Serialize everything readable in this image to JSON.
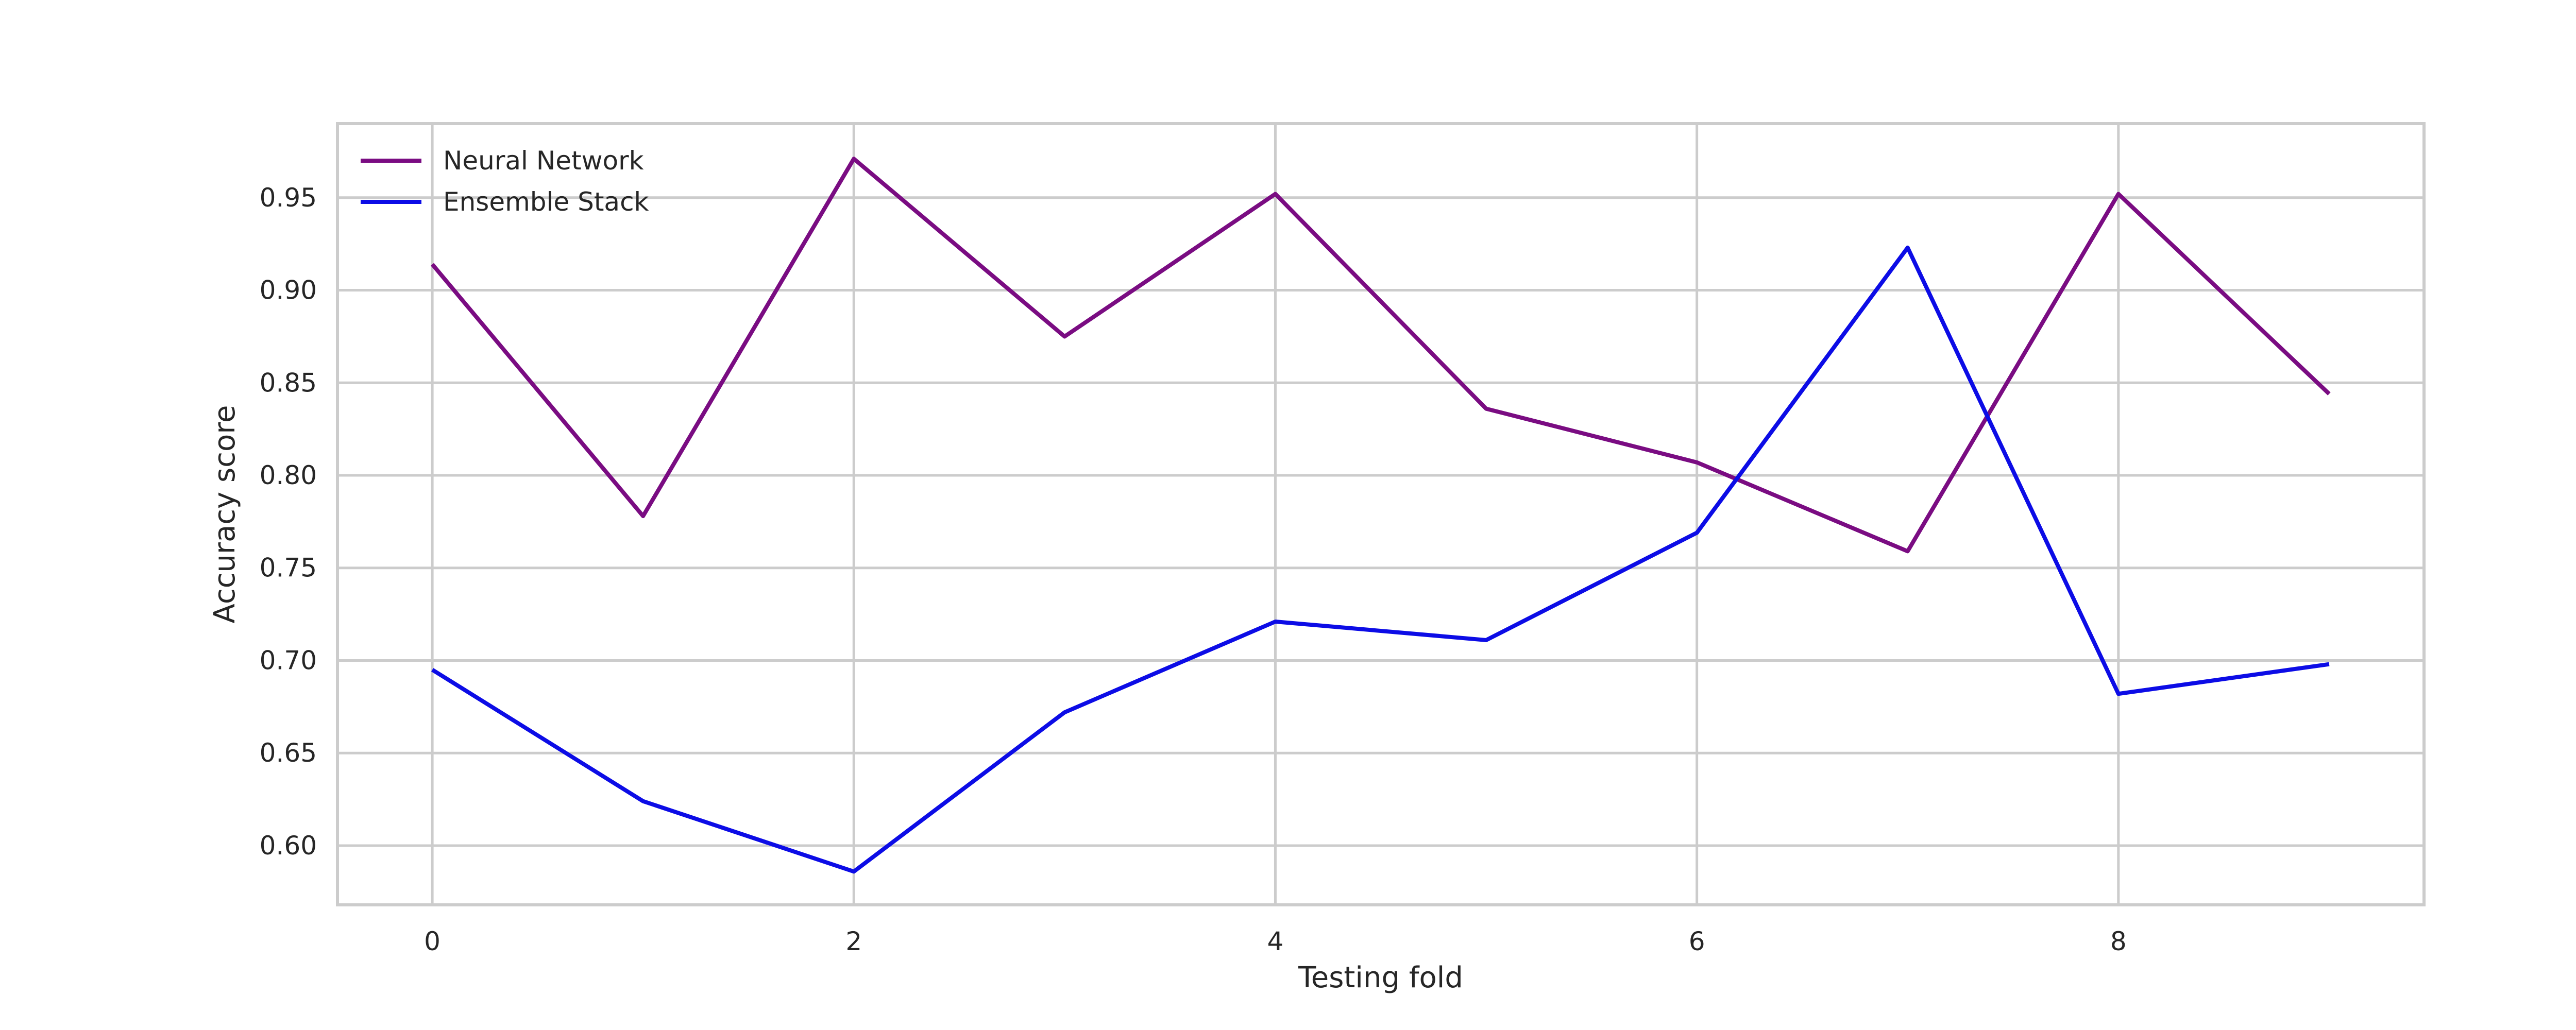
{
  "chart_data": {
    "type": "line",
    "title": "",
    "xlabel": "Testing fold",
    "ylabel": "Accuracy score",
    "x": [
      0,
      1,
      2,
      3,
      4,
      5,
      6,
      7,
      8,
      9
    ],
    "xlim": [
      -0.45,
      9.45
    ],
    "ylim": [
      0.568,
      0.99
    ],
    "xticks": [
      0,
      2,
      4,
      6,
      8
    ],
    "yticks": [
      0.6,
      0.65,
      0.7,
      0.75,
      0.8,
      0.85,
      0.9,
      0.95
    ],
    "ytick_labels": [
      "0.60",
      "0.65",
      "0.70",
      "0.75",
      "0.80",
      "0.85",
      "0.90",
      "0.95"
    ],
    "xtick_labels": [
      "0",
      "2",
      "4",
      "6",
      "8"
    ],
    "grid": true,
    "legend_position": "top-left",
    "series": [
      {
        "name": "Neural Network",
        "color": "#7a0c82",
        "values": [
          0.914,
          0.778,
          0.971,
          0.875,
          0.952,
          0.836,
          0.807,
          0.759,
          0.952,
          0.844
        ]
      },
      {
        "name": "Ensemble Stack",
        "color": "#0c0ce6",
        "values": [
          0.695,
          0.624,
          0.586,
          0.672,
          0.721,
          0.711,
          0.769,
          0.923,
          0.682,
          0.698
        ]
      }
    ]
  }
}
